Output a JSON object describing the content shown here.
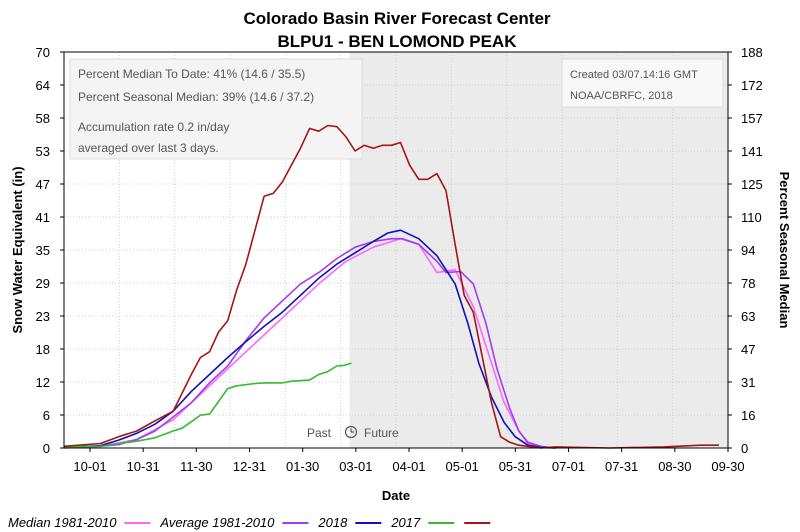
{
  "chart_data": {
    "type": "line",
    "title": "Colorado Basin River Forecast Center",
    "subtitle": "BLPU1 - BEN LOMOND PEAK",
    "xlabel": "Date",
    "ylabel": "Snow Water Equivalent (in)",
    "y2label": "Percent Seasonal Median",
    "x_ticks": [
      "10-01",
      "10-31",
      "11-30",
      "12-31",
      "01-30",
      "03-01",
      "04-01",
      "05-01",
      "05-31",
      "07-01",
      "07-31",
      "08-30",
      "09-30"
    ],
    "x_range": [
      0,
      365
    ],
    "y_ticks": [
      "0",
      "6",
      "12",
      "18",
      "23",
      "29",
      "35",
      "41",
      "47",
      "53",
      "58",
      "64",
      "70"
    ],
    "y2_ticks": [
      "0",
      "16",
      "31",
      "47",
      "63",
      "78",
      "94",
      "110",
      "125",
      "141",
      "157",
      "172",
      "188"
    ],
    "y_range": [
      0,
      70
    ],
    "grid": true,
    "past_future_label": {
      "past": "Past",
      "future": "Future"
    },
    "info_left": [
      "Percent Median To Date: 41% (14.6 / 35.5)",
      "Percent Seasonal Median: 39% (14.6 / 37.2)",
      "Accumulation rate 0.2 in/day",
      "averaged over last 3 days."
    ],
    "info_right": [
      "Created 03/07.14:16 GMT",
      "NOAA/CBRFC, 2018"
    ],
    "series": [
      {
        "name": "Median 1981-2010",
        "color": "#ff66ff",
        "x": [
          0,
          20,
          40,
          60,
          80,
          100,
          120,
          140,
          155,
          170,
          185,
          195,
          205,
          215,
          225,
          235,
          242,
          250,
          255,
          262,
          270
        ],
        "y": [
          0,
          0.3,
          1.5,
          5,
          11,
          17,
          23,
          29,
          33,
          35.5,
          37,
          36,
          31,
          31.5,
          25,
          15,
          8,
          3,
          0.8,
          0.2,
          0
        ]
      },
      {
        "name": "Average 1981-2010",
        "color": "#a23cf0",
        "x": [
          0,
          20,
          30,
          40,
          50,
          60,
          70,
          80,
          90,
          100,
          110,
          120,
          130,
          140,
          150,
          160,
          170,
          180,
          186,
          195,
          205,
          210,
          218,
          225,
          232,
          238,
          245,
          250,
          255,
          262,
          270
        ],
        "y": [
          0.2,
          0.3,
          0.6,
          1.5,
          3,
          5.5,
          8,
          11.5,
          14.5,
          19,
          23,
          26,
          29,
          31,
          33.5,
          35.5,
          36.5,
          37,
          37,
          36,
          33,
          31,
          31.2,
          29,
          22,
          14,
          7,
          3,
          1,
          0.3,
          0
        ]
      },
      {
        "name": "2018",
        "color": "#1111bb",
        "x": [
          0,
          20,
          30,
          40,
          50,
          60,
          70,
          80,
          90,
          100,
          110,
          120,
          130,
          140,
          150,
          160,
          170,
          178,
          185,
          195,
          205,
          215,
          222,
          228,
          235,
          242,
          248,
          255,
          262,
          270
        ],
        "y": [
          0.1,
          0.4,
          1.4,
          2.6,
          4.2,
          6.5,
          10,
          13,
          16,
          18.8,
          21.5,
          24,
          27,
          30,
          32.5,
          34.5,
          36.5,
          38,
          38.5,
          37,
          34,
          29,
          22,
          15,
          9,
          4.5,
          2,
          0.5,
          0.1,
          0
        ]
      },
      {
        "name": "2017",
        "color": "#33bb33",
        "x": [
          0,
          20,
          30,
          40,
          50,
          60,
          65,
          75,
          80,
          90,
          95,
          105,
          110,
          120,
          125,
          135,
          140,
          145,
          150,
          154,
          158
        ],
        "y": [
          0.2,
          0.3,
          0.8,
          1.2,
          1.8,
          3,
          3.5,
          5.8,
          6,
          10.5,
          11,
          11.4,
          11.5,
          11.5,
          11.8,
          12,
          13,
          13.5,
          14.5,
          14.6,
          15
        ]
      },
      {
        "name": "",
        "color": "#a41515",
        "x": [
          0,
          20,
          30,
          40,
          50,
          60,
          70,
          75,
          80,
          85,
          90,
          95,
          100,
          105,
          110,
          115,
          120,
          125,
          130,
          135,
          140,
          145,
          150,
          155,
          160,
          165,
          170,
          175,
          180,
          185,
          190,
          195,
          200,
          205,
          210,
          215,
          220,
          225,
          230,
          235,
          240,
          245,
          250,
          255,
          262,
          270,
          300,
          330,
          350,
          360
        ],
        "y": [
          0.3,
          0.8,
          2,
          3,
          4.8,
          6.5,
          13,
          16,
          17,
          20.5,
          22.5,
          28,
          32.5,
          38.5,
          44.5,
          45,
          47,
          50,
          53,
          56.5,
          56,
          57,
          56.8,
          55,
          52.5,
          53.5,
          53,
          53.5,
          53.5,
          54,
          50,
          47.5,
          47.5,
          48.5,
          45.5,
          36,
          27,
          24,
          16,
          8,
          2,
          1,
          0.5,
          0.3,
          0,
          0.2,
          0,
          0.2,
          0.5,
          0.5
        ]
      }
    ]
  }
}
